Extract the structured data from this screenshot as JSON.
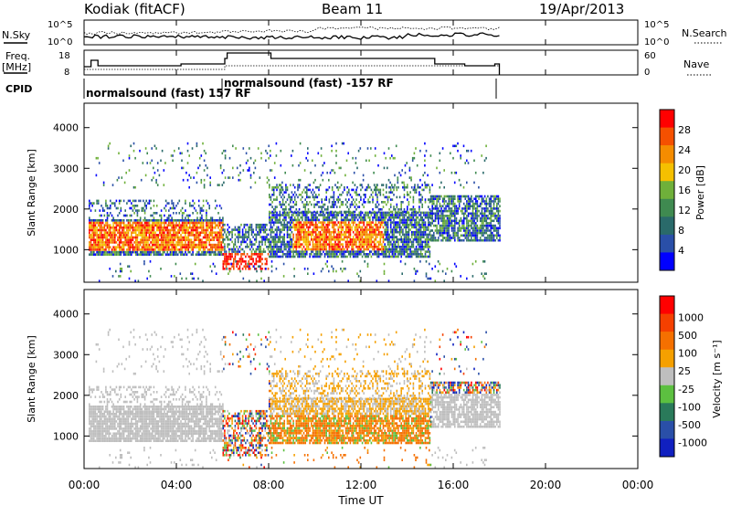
{
  "header": {
    "station": "Kodiak (fitACF)",
    "beam": "Beam 11",
    "date": "19/Apr/2013"
  },
  "strips": {
    "nsky_label": "N.Sky",
    "nsearch_label": "N.Search",
    "nsky_ticks": [
      "10^5",
      "10^0"
    ],
    "nsearch_ticks": [
      "10^5",
      "10^0"
    ],
    "freq_label_1": "Freq.",
    "freq_label_2": "[MHz]",
    "freq_ticks": [
      "18",
      "8"
    ],
    "nave_label": "Nave",
    "nave_ticks": [
      "60",
      "0"
    ],
    "cpid_label": "CPID",
    "cpid_1": "normalsound (fast) 157 RF",
    "cpid_2": "normalsound (fast) -157 RF"
  },
  "colors": {
    "power": [
      "#0000ff",
      "#2a4fa8",
      "#2a6a6a",
      "#3f8a50",
      "#6fb03a",
      "#f5c000",
      "#f58c00",
      "#f55000",
      "#ff0000"
    ],
    "velocity": [
      "#1020c0",
      "#2a4fa8",
      "#2a7a5a",
      "#5cc040",
      "#bebebe",
      "#f5a000",
      "#f57000",
      "#f54000",
      "#ff0000"
    ]
  },
  "chart_data": [
    {
      "type": "heatmap",
      "name": "power",
      "ylabel": "Slant Range [km]",
      "yticks": [
        "1000",
        "2000",
        "3000",
        "4000"
      ],
      "ylim": [
        200,
        4600
      ],
      "xlim": [
        "00:00",
        "24:00"
      ],
      "colorbar_label": "Power [dB]",
      "colorbar_ticks": [
        "4",
        "8",
        "12",
        "16",
        "20",
        "24",
        "28"
      ],
      "colorbar_range": [
        0,
        32
      ]
    },
    {
      "type": "heatmap",
      "name": "velocity",
      "xlabel": "Time UT",
      "xticks": [
        "00:00",
        "04:00",
        "08:00",
        "12:00",
        "16:00",
        "20:00",
        "00:00"
      ],
      "ylabel": "Slant Range [km]",
      "yticks": [
        "1000",
        "2000",
        "3000",
        "4000"
      ],
      "ylim": [
        200,
        4600
      ],
      "colorbar_label": "Velocity [m s⁻¹]",
      "colorbar_ticks": [
        "1000",
        "500",
        "100",
        "25",
        "-25",
        "-100",
        "-500",
        "-1000"
      ]
    }
  ]
}
